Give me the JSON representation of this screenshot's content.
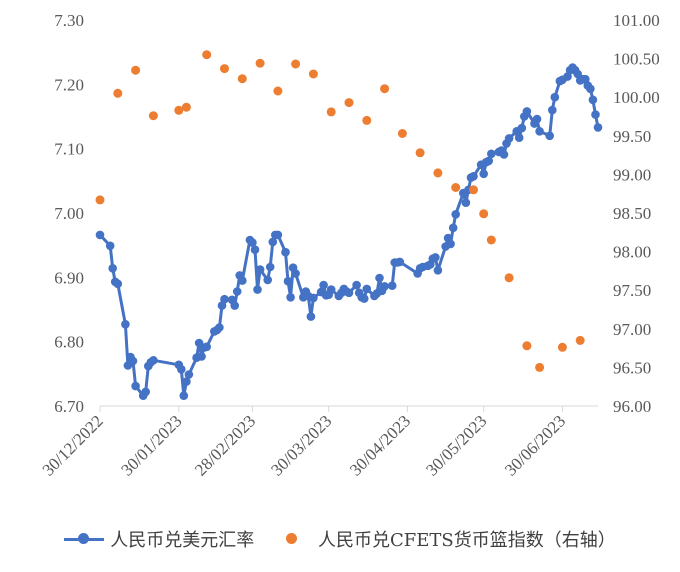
{
  "chart_data": {
    "type": "line",
    "title": "",
    "xlabel": "",
    "ylabel": "",
    "x_ticks": [
      "30/12/2022",
      "30/01/2023",
      "28/02/2023",
      "30/03/2023",
      "30/04/2023",
      "30/05/2023",
      "30/06/2023"
    ],
    "x_range": [
      "2022-12-30",
      "2023-07-14"
    ],
    "y_left": {
      "ticks": [
        "6.70",
        "6.80",
        "6.90",
        "7.00",
        "7.10",
        "7.20",
        "7.30"
      ],
      "ylim": [
        6.7,
        7.3
      ]
    },
    "y_right": {
      "ticks": [
        "96.00",
        "96.50",
        "97.00",
        "97.50",
        "98.00",
        "98.50",
        "99.00",
        "99.50",
        "100.00",
        "100.50",
        "101.00"
      ],
      "ylim": [
        96.0,
        101.0
      ]
    },
    "grid": false,
    "legend_position": "bottom",
    "series": [
      {
        "name": "人民币兑美元汇率",
        "type": "line",
        "axis": "left",
        "color": "#4472C4",
        "points": [
          [
            "2022-12-30",
            6.966
          ],
          [
            "2023-01-03",
            6.949
          ],
          [
            "2023-01-04",
            6.914
          ],
          [
            "2023-01-05",
            6.893
          ],
          [
            "2023-01-06",
            6.89
          ],
          [
            "2023-01-09",
            6.827
          ],
          [
            "2023-01-10",
            6.763
          ],
          [
            "2023-01-11",
            6.776
          ],
          [
            "2023-01-12",
            6.77
          ],
          [
            "2023-01-13",
            6.731
          ],
          [
            "2023-01-16",
            6.716
          ],
          [
            "2023-01-17",
            6.722
          ],
          [
            "2023-01-18",
            6.762
          ],
          [
            "2023-01-19",
            6.768
          ],
          [
            "2023-01-20",
            6.771
          ],
          [
            "2023-01-30",
            6.764
          ],
          [
            "2023-01-31",
            6.757
          ],
          [
            "2023-02-01",
            6.716
          ],
          [
            "2023-02-02",
            6.738
          ],
          [
            "2023-02-03",
            6.749
          ],
          [
            "2023-02-06",
            6.775
          ],
          [
            "2023-02-07",
            6.798
          ],
          [
            "2023-02-08",
            6.777
          ],
          [
            "2023-02-09",
            6.791
          ],
          [
            "2023-02-10",
            6.792
          ],
          [
            "2023-02-13",
            6.816
          ],
          [
            "2023-02-14",
            6.818
          ],
          [
            "2023-02-15",
            6.822
          ],
          [
            "2023-02-16",
            6.856
          ],
          [
            "2023-02-17",
            6.866
          ],
          [
            "2023-02-20",
            6.865
          ],
          [
            "2023-02-21",
            6.856
          ],
          [
            "2023-02-22",
            6.878
          ],
          [
            "2023-02-23",
            6.903
          ],
          [
            "2023-02-24",
            6.895
          ],
          [
            "2023-02-27",
            6.958
          ],
          [
            "2023-02-28",
            6.954
          ],
          [
            "2023-03-01",
            6.943
          ],
          [
            "2023-03-02",
            6.881
          ],
          [
            "2023-03-03",
            6.912
          ],
          [
            "2023-03-06",
            6.896
          ],
          [
            "2023-03-07",
            6.916
          ],
          [
            "2023-03-08",
            6.955
          ],
          [
            "2023-03-09",
            6.966
          ],
          [
            "2023-03-10",
            6.966
          ],
          [
            "2023-03-13",
            6.939
          ],
          [
            "2023-03-14",
            6.894
          ],
          [
            "2023-03-15",
            6.869
          ],
          [
            "2023-03-16",
            6.915
          ],
          [
            "2023-03-17",
            6.906
          ],
          [
            "2023-03-20",
            6.869
          ],
          [
            "2023-03-21",
            6.878
          ],
          [
            "2023-03-22",
            6.871
          ],
          [
            "2023-03-23",
            6.839
          ],
          [
            "2023-03-24",
            6.868
          ],
          [
            "2023-03-27",
            6.877
          ],
          [
            "2023-03-28",
            6.888
          ],
          [
            "2023-03-29",
            6.872
          ],
          [
            "2023-03-30",
            6.873
          ],
          [
            "2023-03-31",
            6.881
          ],
          [
            "2023-04-03",
            6.871
          ],
          [
            "2023-04-04",
            6.876
          ],
          [
            "2023-04-05",
            6.882
          ],
          [
            "2023-04-06",
            6.878
          ],
          [
            "2023-04-07",
            6.876
          ],
          [
            "2023-04-10",
            6.888
          ],
          [
            "2023-04-11",
            6.876
          ],
          [
            "2023-04-12",
            6.869
          ],
          [
            "2023-04-13",
            6.867
          ],
          [
            "2023-04-14",
            6.882
          ],
          [
            "2023-04-17",
            6.871
          ],
          [
            "2023-04-18",
            6.875
          ],
          [
            "2023-04-19",
            6.899
          ],
          [
            "2023-04-20",
            6.879
          ],
          [
            "2023-04-21",
            6.886
          ],
          [
            "2023-04-24",
            6.887
          ],
          [
            "2023-04-25",
            6.923
          ],
          [
            "2023-04-26",
            6.923
          ],
          [
            "2023-04-27",
            6.924
          ],
          [
            "2023-05-04",
            6.906
          ],
          [
            "2023-05-05",
            6.914
          ],
          [
            "2023-05-06",
            6.916
          ],
          [
            "2023-05-08",
            6.918
          ],
          [
            "2023-05-09",
            6.92
          ],
          [
            "2023-05-10",
            6.929
          ],
          [
            "2023-05-11",
            6.931
          ],
          [
            "2023-05-12",
            6.911
          ],
          [
            "2023-05-15",
            6.948
          ],
          [
            "2023-05-16",
            6.961
          ],
          [
            "2023-05-17",
            6.952
          ],
          [
            "2023-05-18",
            6.977
          ],
          [
            "2023-05-19",
            6.998
          ],
          [
            "2023-05-22",
            7.031
          ],
          [
            "2023-05-23",
            7.016
          ],
          [
            "2023-05-24",
            7.036
          ],
          [
            "2023-05-25",
            7.055
          ],
          [
            "2023-05-26",
            7.057
          ],
          [
            "2023-05-29",
            7.075
          ],
          [
            "2023-05-30",
            7.061
          ],
          [
            "2023-05-31",
            7.079
          ],
          [
            "2023-06-01",
            7.081
          ],
          [
            "2023-06-02",
            7.092
          ],
          [
            "2023-06-05",
            7.095
          ],
          [
            "2023-06-06",
            7.097
          ],
          [
            "2023-06-07",
            7.091
          ],
          [
            "2023-06-08",
            7.108
          ],
          [
            "2023-06-09",
            7.116
          ],
          [
            "2023-06-12",
            7.127
          ],
          [
            "2023-06-13",
            7.117
          ],
          [
            "2023-06-14",
            7.132
          ],
          [
            "2023-06-15",
            7.15
          ],
          [
            "2023-06-16",
            7.158
          ],
          [
            "2023-06-19",
            7.139
          ],
          [
            "2023-06-20",
            7.146
          ],
          [
            "2023-06-21",
            7.127
          ],
          [
            "2023-06-25",
            7.12
          ],
          [
            "2023-06-26",
            7.16
          ],
          [
            "2023-06-27",
            7.18
          ],
          [
            "2023-06-29",
            7.205
          ],
          [
            "2023-06-30",
            7.207
          ],
          [
            "2023-07-02",
            7.212
          ],
          [
            "2023-07-03",
            7.222
          ],
          [
            "2023-07-04",
            7.226
          ],
          [
            "2023-07-05",
            7.222
          ],
          [
            "2023-07-06",
            7.216
          ],
          [
            "2023-07-07",
            7.206
          ],
          [
            "2023-07-08",
            7.208
          ],
          [
            "2023-07-09",
            7.208
          ],
          [
            "2023-07-10",
            7.198
          ],
          [
            "2023-07-11",
            7.193
          ],
          [
            "2023-07-12",
            7.176
          ],
          [
            "2023-07-13",
            7.153
          ],
          [
            "2023-07-14",
            7.133
          ]
        ]
      },
      {
        "name": "人民币兑CFETS货币篮指数（右轴）",
        "type": "scatter",
        "axis": "right",
        "color": "#ED7D31",
        "points": [
          [
            "2022-12-30",
            98.67
          ],
          [
            "2023-01-06",
            100.05
          ],
          [
            "2023-01-13",
            100.35
          ],
          [
            "2023-01-20",
            99.76
          ],
          [
            "2023-01-30",
            99.83
          ],
          [
            "2023-02-02",
            99.87
          ],
          [
            "2023-02-10",
            100.55
          ],
          [
            "2023-02-17",
            100.37
          ],
          [
            "2023-02-24",
            100.24
          ],
          [
            "2023-03-03",
            100.44
          ],
          [
            "2023-03-10",
            100.08
          ],
          [
            "2023-03-17",
            100.43
          ],
          [
            "2023-03-24",
            100.3
          ],
          [
            "2023-03-31",
            99.81
          ],
          [
            "2023-04-07",
            99.93
          ],
          [
            "2023-04-14",
            99.7
          ],
          [
            "2023-04-21",
            100.11
          ],
          [
            "2023-04-28",
            99.53
          ],
          [
            "2023-05-05",
            99.28
          ],
          [
            "2023-05-12",
            99.02
          ],
          [
            "2023-05-19",
            98.83
          ],
          [
            "2023-05-26",
            98.8
          ],
          [
            "2023-05-30",
            98.49
          ],
          [
            "2023-06-02",
            98.15
          ],
          [
            "2023-06-09",
            97.66
          ],
          [
            "2023-06-16",
            96.78
          ],
          [
            "2023-06-21",
            96.5
          ],
          [
            "2023-06-30",
            96.76
          ],
          [
            "2023-07-07",
            96.85
          ]
        ]
      }
    ]
  }
}
